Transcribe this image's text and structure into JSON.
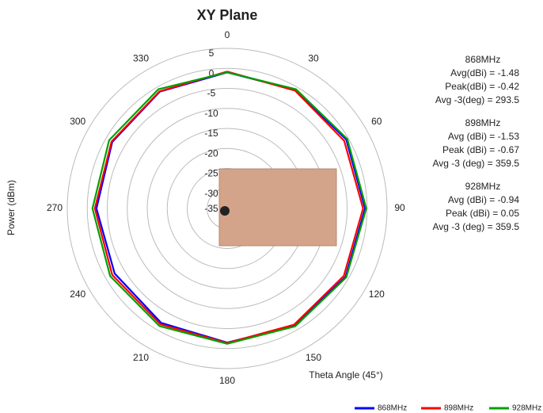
{
  "chart_data": {
    "type": "polar",
    "title": "XY Plane",
    "y_label": "Power (dBm)",
    "x_label": "Theta Angle (45°)",
    "x": [
      0,
      30,
      60,
      90,
      120,
      150,
      180,
      210,
      240,
      270,
      300,
      330,
      360
    ],
    "xlim": [
      0,
      360
    ],
    "xticks": [
      0,
      30,
      60,
      90,
      120,
      150,
      180,
      210,
      240,
      270,
      300,
      330
    ],
    "ylim": [
      -35,
      5
    ],
    "yticks": [
      5,
      0,
      -5,
      -10,
      -15,
      -20,
      -25,
      -30,
      -35
    ],
    "grid": true,
    "legend": "bottom-right",
    "series": [
      {
        "name": "868MHz",
        "color": "#0000ff",
        "values": [
          -1.0,
          -0.8,
          -0.6,
          -0.5,
          -0.8,
          -1.2,
          -1.5,
          -2.0,
          -2.5,
          -2.3,
          -1.8,
          -1.3,
          -1.0
        ]
      },
      {
        "name": "898MHz",
        "color": "#ff0000",
        "values": [
          -0.8,
          -1.0,
          -1.2,
          -1.0,
          -1.3,
          -1.5,
          -1.4,
          -1.6,
          -1.8,
          -1.9,
          -1.6,
          -1.2,
          -0.8
        ]
      },
      {
        "name": "928MHz",
        "color": "#00a000",
        "values": [
          -1.0,
          -0.6,
          -0.3,
          -0.2,
          -0.6,
          -1.0,
          -1.2,
          -1.1,
          -1.2,
          -1.3,
          -0.9,
          -0.6,
          -1.0
        ]
      }
    ],
    "annotations": [
      {
        "title": "868MHz",
        "lines": [
          "Avg(dBi) = -1.48",
          "Peak(dBi) = -0.42",
          "Avg -3(deg) = 293.5"
        ]
      },
      {
        "title": "898MHz",
        "lines": [
          "Avg (dBi) =  -1.53",
          "Peak (dBi) =  -0.67",
          "Avg -3 (deg) = 359.5"
        ]
      },
      {
        "title": "928MHz",
        "lines": [
          "Avg (dBi) = -0.94",
          "Peak (dBi) = 0.05",
          "Avg -3 (deg) = 359.5"
        ]
      }
    ]
  }
}
